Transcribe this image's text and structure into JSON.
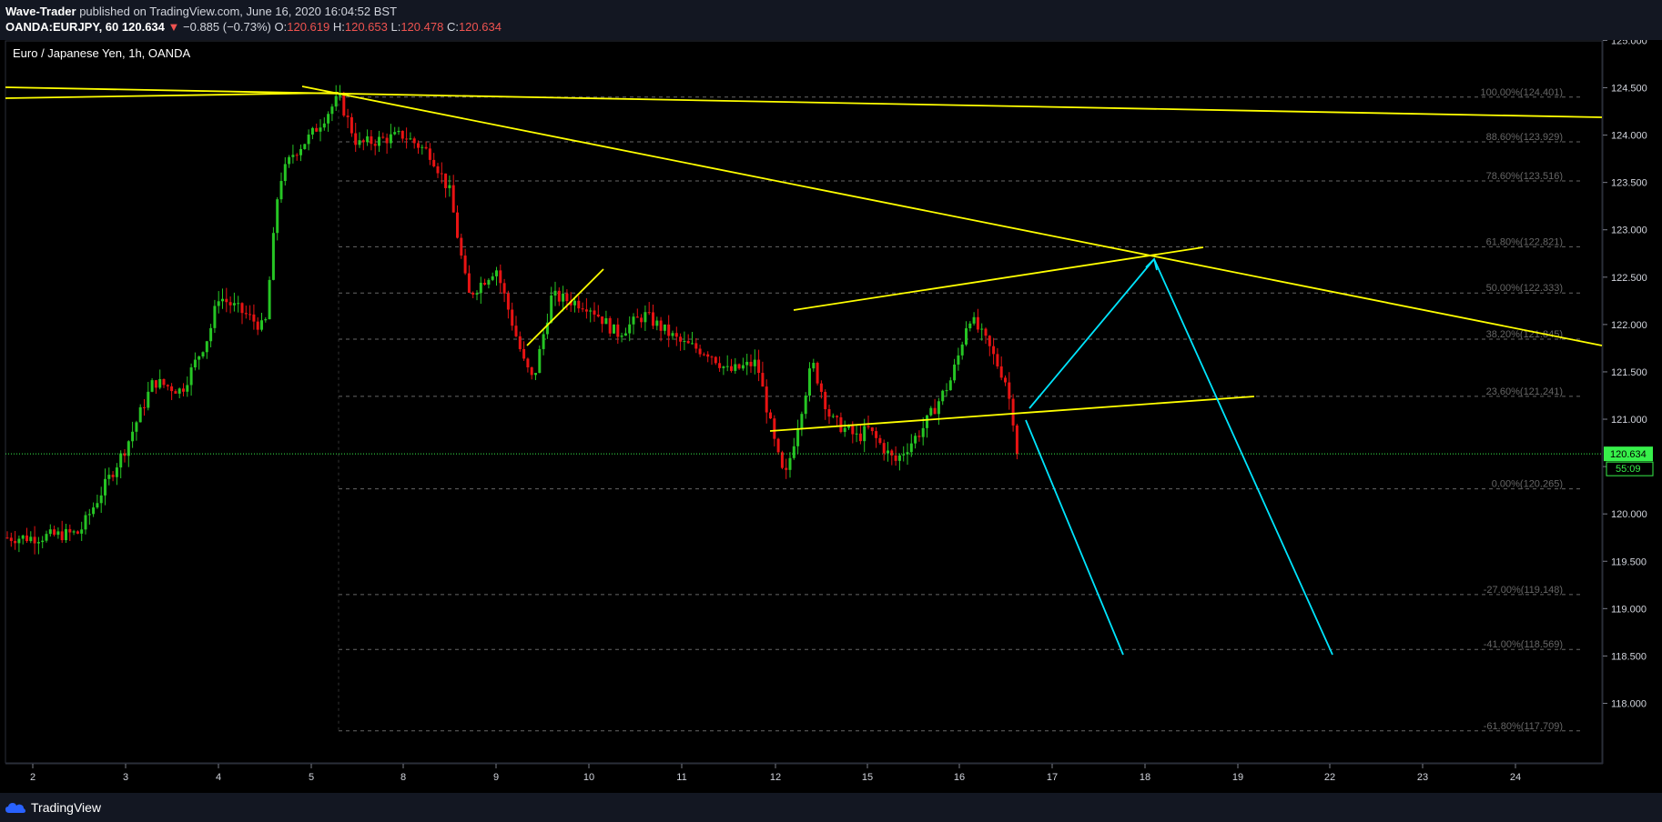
{
  "header": {
    "publisher": "Wave-Trader",
    "published_text": "published on TradingView.com, June 16, 2020 16:04:52 BST",
    "symbol": "OANDA:EURJPY, 60",
    "last": "120.634",
    "change": "−0.885 (−0.73%)",
    "o_label": "O:",
    "o": "120.619",
    "h_label": "H:",
    "h": "120.653",
    "l_label": "L:",
    "l": "120.478",
    "c_label": "C:",
    "c": "120.634"
  },
  "chart_title": "Euro / Japanese Yen, 1h, OANDA",
  "price_tag": "120.634",
  "countdown": "55:09",
  "footer": {
    "brand": "TradingView"
  },
  "colors": {
    "background": "#000000",
    "up": "#26c524",
    "down": "#e81313",
    "trendline": "#ffff00",
    "arrow": "#00e5ff",
    "price_line": "#37f04a",
    "fib": "#666666"
  },
  "chart_data": {
    "type": "candlestick",
    "title": "Euro / Japanese Yen, 1h, OANDA",
    "x_ticks": [
      "2",
      "3",
      "4",
      "5",
      "8",
      "9",
      "10",
      "11",
      "12",
      "15",
      "16",
      "17",
      "18",
      "19",
      "22",
      "23",
      "24"
    ],
    "y_ticks": [
      "125.000",
      "124.500",
      "124.000",
      "123.500",
      "123.000",
      "122.500",
      "122.000",
      "121.500",
      "121.000",
      "120.500",
      "120.000",
      "119.500",
      "119.000",
      "118.500",
      "118.000"
    ],
    "ylim": [
      117.45,
      125.25
    ],
    "current_price": 120.634,
    "fib_levels": [
      {
        "label": "100.00%(124.401)",
        "price": 124.401
      },
      {
        "label": "88.60%(123.929)",
        "price": 123.929
      },
      {
        "label": "78.60%(123.516)",
        "price": 123.516
      },
      {
        "label": "61.80%(122.821)",
        "price": 122.821
      },
      {
        "label": "50.00%(122.333)",
        "price": 122.333
      },
      {
        "label": "38.20%(121.845)",
        "price": 121.845
      },
      {
        "label": "23.60%(121.241)",
        "price": 121.241
      },
      {
        "label": "0.00%(120.265)",
        "price": 120.265
      },
      {
        "label": "-27.00%(119.148)",
        "price": 119.148
      },
      {
        "label": "-41.00%(118.569)",
        "price": 118.569
      },
      {
        "label": "-61.80%(117.709)",
        "price": 117.709
      }
    ],
    "price_path": [
      [
        "2",
        119.75
      ],
      [
        "2.5",
        119.8
      ],
      [
        "3",
        120.7
      ],
      [
        "3.3",
        121.4
      ],
      [
        "3.6",
        121.3
      ],
      [
        "3.9",
        121.9
      ],
      [
        "4",
        122.3
      ],
      [
        "4.3",
        122.1
      ],
      [
        "4.5",
        121.95
      ],
      [
        "4.65",
        123.5
      ],
      [
        "4.8",
        123.8
      ],
      [
        "5",
        124.0
      ],
      [
        "5.3",
        124.4
      ],
      [
        "5.5",
        123.9
      ],
      [
        "8",
        124.0
      ],
      [
        "8.3",
        123.8
      ],
      [
        "8.5",
        123.4
      ],
      [
        "8.7",
        122.3
      ],
      [
        "9",
        122.6
      ],
      [
        "9.3",
        121.6
      ],
      [
        "9.4",
        121.4
      ],
      [
        "9.6",
        122.3
      ],
      [
        "10",
        122.2
      ],
      [
        "10.3",
        121.9
      ],
      [
        "10.6",
        122.1
      ],
      [
        "11",
        121.8
      ],
      [
        "11.3",
        121.7
      ],
      [
        "11.5",
        121.5
      ],
      [
        "11.8",
        121.6
      ],
      [
        "12",
        120.7
      ],
      [
        "12.1",
        120.35
      ],
      [
        "12.4",
        121.6
      ],
      [
        "12.6",
        121.0
      ],
      [
        "12.9",
        120.8
      ],
      [
        "15",
        120.9
      ],
      [
        "15.3",
        120.55
      ],
      [
        "15.6",
        120.9
      ],
      [
        "15.9",
        121.4
      ],
      [
        "16",
        121.7
      ],
      [
        "16.1",
        122.1
      ],
      [
        "16.3",
        121.8
      ],
      [
        "16.5",
        121.4
      ],
      [
        "16.6",
        120.9
      ],
      [
        "16.65",
        120.634
      ]
    ]
  }
}
